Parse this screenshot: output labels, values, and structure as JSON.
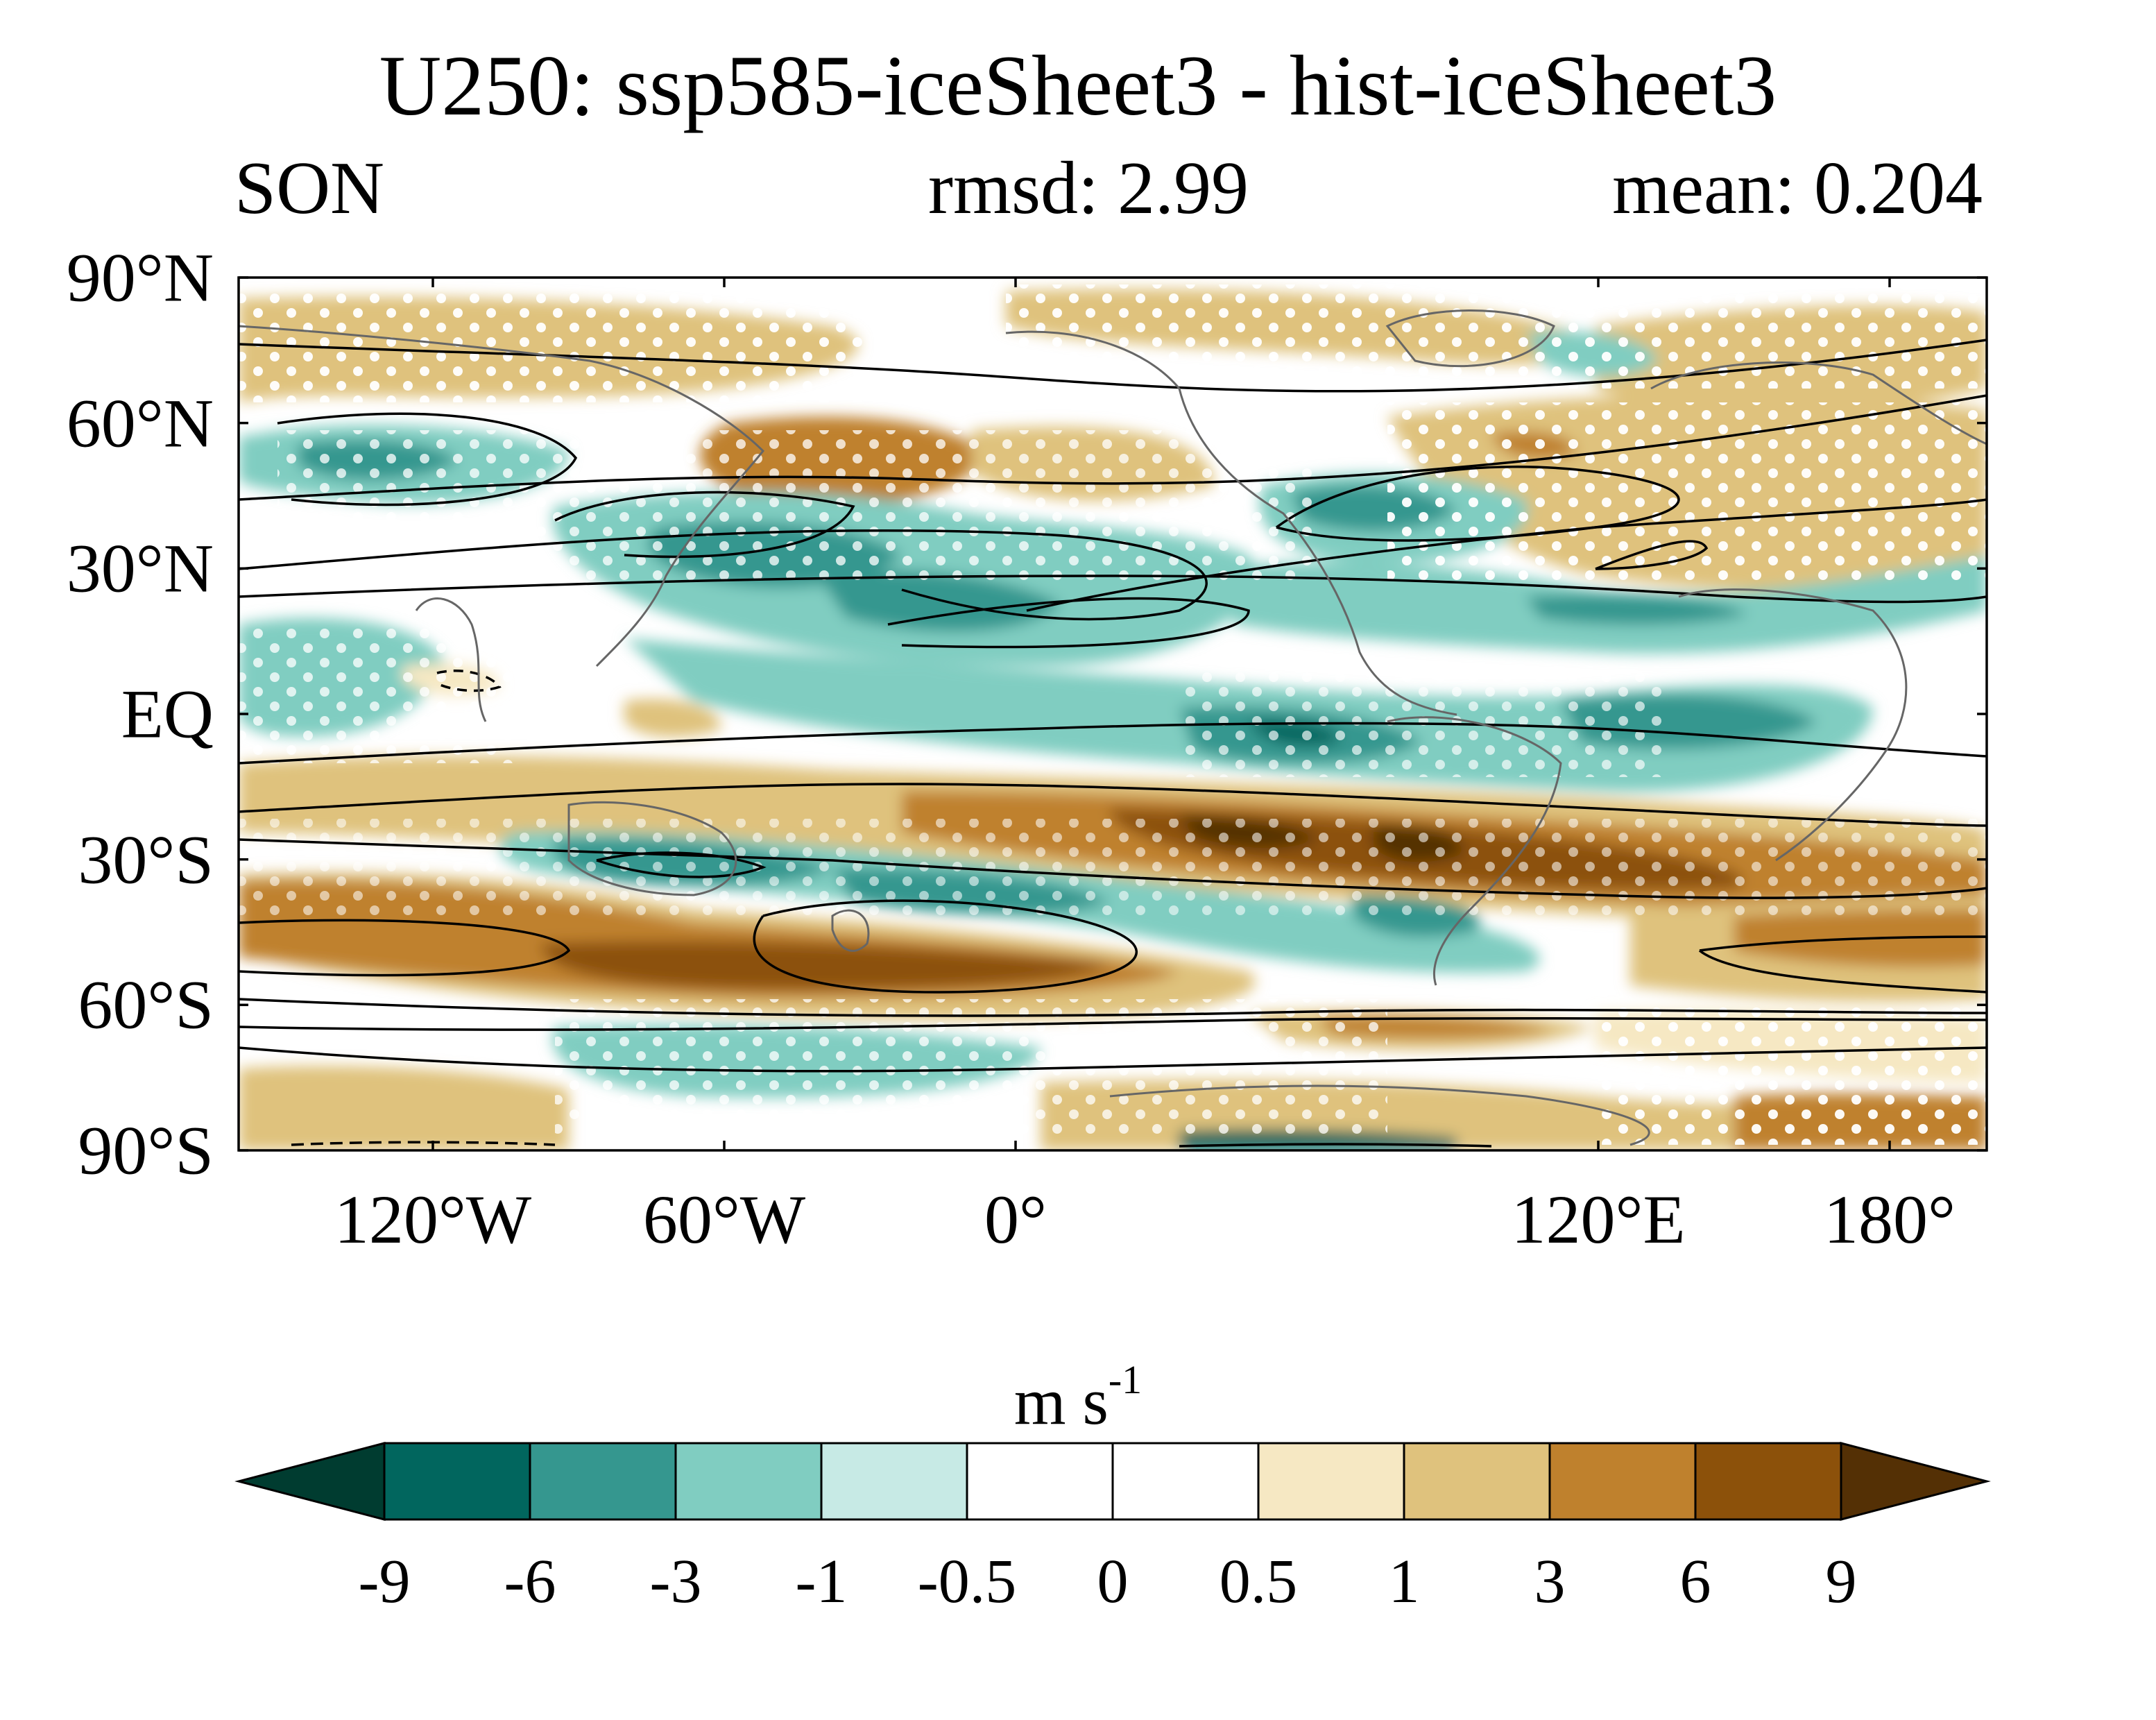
{
  "title": "U250: ssp585-iceSheet3 - hist-iceSheet3",
  "subtitle_left": "SON",
  "subtitle_center": "rmsd: 2.99",
  "subtitle_right": "mean: 0.204",
  "map": {
    "projection": "equirectangular",
    "central_longitude": 20,
    "y_ticks": [
      "90°N",
      "60°N",
      "30°N",
      "EQ",
      "30°S",
      "60°S",
      "90°S"
    ],
    "x_ticks": [
      "120°E",
      "180°",
      "120°W",
      "60°W",
      "0°"
    ]
  },
  "colorbar": {
    "units_base": "m s",
    "units_exponent": "-1",
    "tick_labels": [
      "-9",
      "-6",
      "-3",
      "-1",
      "-0.5",
      "0",
      "0.5",
      "1",
      "3",
      "6",
      "9"
    ],
    "colors": [
      "#003c30",
      "#01665e",
      "#35978f",
      "#80cdc1",
      "#c7eae5",
      "#ffffff",
      "#ffffff",
      "#f6e8c3",
      "#dfc27d",
      "#bf812d",
      "#8c510a",
      "#543005"
    ]
  }
}
